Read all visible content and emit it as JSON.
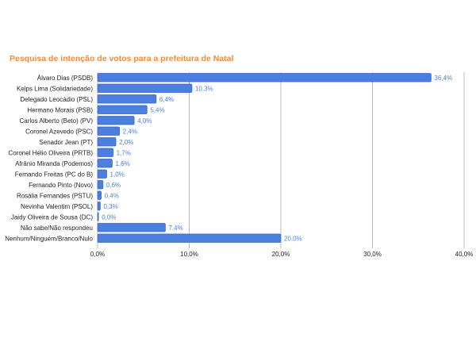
{
  "chart_data": {
    "type": "bar",
    "orientation": "horizontal",
    "title": "Pesquisa de intenção de votos para a prefeitura de Natal",
    "categories": [
      "Álvaro Dias (PSDB)",
      "Kelps Lima (Solidariedade)",
      "Delegado Leocádio (PSL)",
      "Hermano Morais (PSB)",
      "Carlos Alberto (Beto) (PV)",
      "Coronel Azevedo (PSC)",
      "Senador Jean (PT)",
      "Coronel Hélio Oliveira (PRTB)",
      "Afrânio Miranda (Podemos)",
      "Fernando Freitas (PC do B)",
      "Fernando Pinto (Novo)",
      "Rosália Fernandes (PSTU)",
      "Nevinha Valentim (PSOL)",
      "Jaidy Oliveira de Sousa (DC)",
      "Não sabe/Não respondeu",
      "Nenhum/Ninguém/Branco/Nulo"
    ],
    "values": [
      36.4,
      10.3,
      6.4,
      5.4,
      4.0,
      2.4,
      2.0,
      1.7,
      1.6,
      1.0,
      0.6,
      0.4,
      0.3,
      0.0,
      7.4,
      20.0
    ],
    "value_labels": [
      "36,4%",
      "10,3%",
      "6,4%",
      "5,4%",
      "4,0%",
      "2,4%",
      "2,0%",
      "1,7%",
      "1,6%",
      "1,0%",
      "0,6%",
      "0,4%",
      "0,3%",
      "0,0%",
      "7,4%",
      "20,0%"
    ],
    "xlim": [
      0,
      40
    ],
    "xticks": [
      0,
      10,
      20,
      30,
      40
    ],
    "xtick_labels": [
      "0,0%",
      "10,0%",
      "20,0%",
      "30,0%",
      "40,0%"
    ],
    "xlabel": "",
    "ylabel": "",
    "grid": true,
    "legend": "none"
  },
  "colors": {
    "title": "#f28a3c",
    "bar": "#4a7fe0",
    "bar_edge": "#2f5fbf",
    "value_label": "#4a7fe0",
    "grid": "#bdbdbd"
  }
}
